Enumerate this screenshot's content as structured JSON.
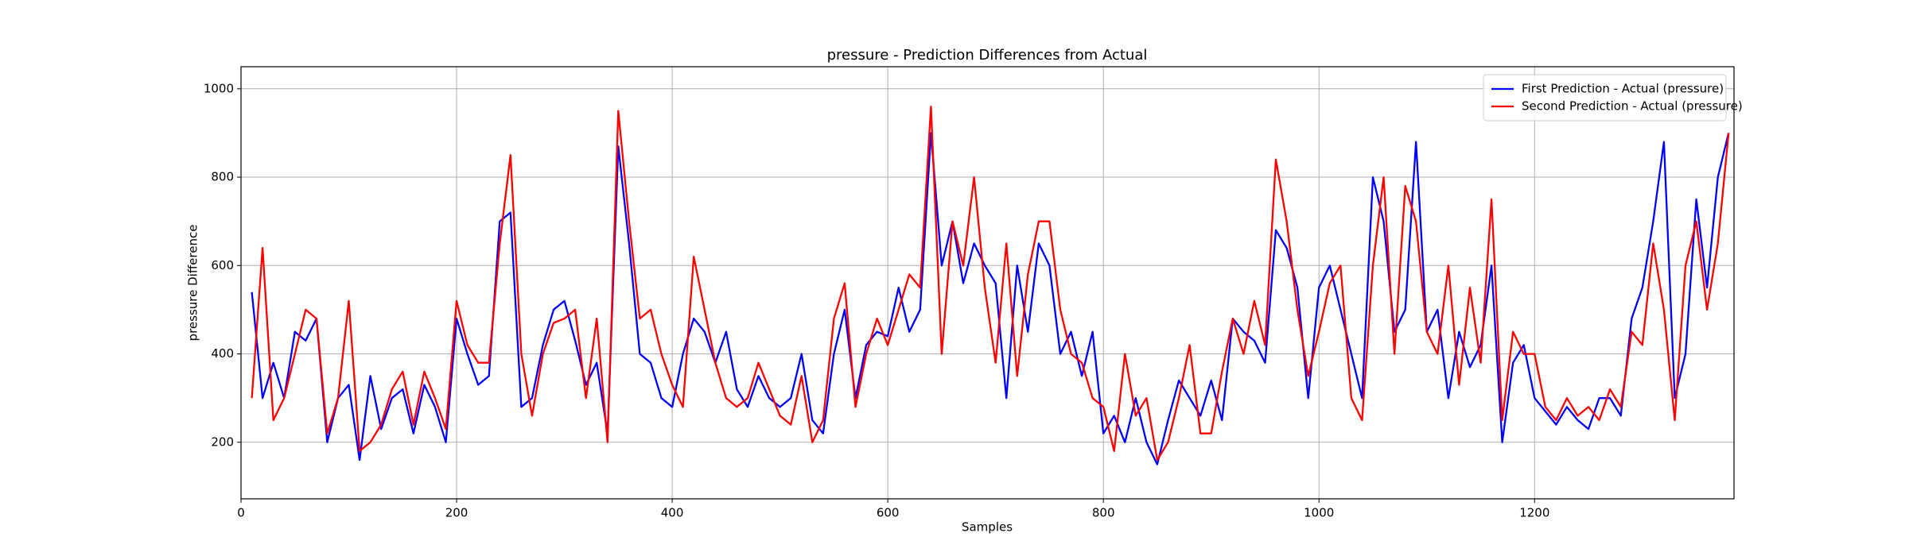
{
  "chart_data": {
    "type": "line",
    "title": "pressure - Prediction Differences from Actual",
    "xlabel": "Samples",
    "ylabel": "pressure Difference",
    "x": [
      10,
      20,
      30,
      40,
      50,
      60,
      70,
      80,
      90,
      100,
      110,
      120,
      130,
      140,
      150,
      160,
      170,
      180,
      190,
      200,
      210,
      220,
      230,
      240,
      250,
      260,
      270,
      280,
      290,
      300,
      310,
      320,
      330,
      340,
      350,
      360,
      370,
      380,
      390,
      400,
      410,
      420,
      430,
      440,
      450,
      460,
      470,
      480,
      490,
      500,
      510,
      520,
      530,
      540,
      550,
      560,
      570,
      580,
      590,
      600,
      610,
      620,
      630,
      640,
      650,
      660,
      670,
      680,
      690,
      700,
      710,
      720,
      730,
      740,
      750,
      760,
      770,
      780,
      790,
      800,
      810,
      820,
      830,
      840,
      850,
      860,
      870,
      880,
      890,
      900,
      910,
      920,
      930,
      940,
      950,
      960,
      970,
      980,
      990,
      1000,
      1010,
      1020,
      1030,
      1040,
      1050,
      1060,
      1070,
      1080,
      1090,
      1100,
      1110,
      1120,
      1130,
      1140,
      1150,
      1160,
      1170,
      1180,
      1190,
      1200,
      1210,
      1220,
      1230,
      1240,
      1250,
      1260,
      1270,
      1280,
      1290,
      1300,
      1310,
      1320,
      1330,
      1340,
      1350,
      1360,
      1370,
      1380
    ],
    "series": [
      {
        "name": "First Prediction - Actual (pressure)",
        "color": "#0000ff",
        "values": [
          540,
          300,
          380,
          300,
          450,
          430,
          480,
          200,
          300,
          330,
          160,
          350,
          230,
          300,
          320,
          220,
          330,
          280,
          200,
          480,
          400,
          330,
          350,
          700,
          720,
          280,
          300,
          420,
          500,
          520,
          430,
          330,
          380,
          220,
          870,
          650,
          400,
          380,
          300,
          280,
          400,
          480,
          450,
          380,
          450,
          320,
          280,
          350,
          300,
          280,
          300,
          400,
          250,
          220,
          400,
          500,
          300,
          420,
          450,
          440,
          550,
          450,
          500,
          900,
          600,
          700,
          560,
          650,
          600,
          560,
          300,
          600,
          450,
          650,
          600,
          400,
          450,
          350,
          450,
          220,
          260,
          200,
          300,
          200,
          150,
          250,
          340,
          300,
          260,
          340,
          250,
          480,
          450,
          430,
          380,
          680,
          640,
          550,
          300,
          550,
          600,
          500,
          400,
          300,
          800,
          700,
          450,
          500,
          880,
          450,
          500,
          300,
          450,
          370,
          420,
          600,
          200,
          380,
          420,
          300,
          270,
          240,
          280,
          250,
          230,
          300,
          300,
          260,
          480,
          550,
          700,
          880,
          300,
          400,
          750,
          550,
          800,
          900
        ]
      },
      {
        "name": "Second Prediction - Actual (pressure)",
        "color": "#ff0000",
        "values": [
          300,
          640,
          250,
          300,
          400,
          500,
          480,
          220,
          300,
          520,
          180,
          200,
          240,
          320,
          360,
          240,
          360,
          300,
          230,
          520,
          420,
          380,
          380,
          650,
          850,
          400,
          260,
          400,
          470,
          480,
          500,
          300,
          480,
          200,
          950,
          700,
          480,
          500,
          400,
          330,
          280,
          620,
          500,
          380,
          300,
          280,
          300,
          380,
          320,
          260,
          240,
          350,
          200,
          250,
          480,
          560,
          280,
          400,
          480,
          420,
          500,
          580,
          550,
          960,
          400,
          700,
          600,
          800,
          550,
          380,
          650,
          350,
          580,
          700,
          700,
          500,
          400,
          380,
          300,
          280,
          180,
          400,
          260,
          300,
          160,
          200,
          300,
          420,
          220,
          220,
          360,
          480,
          400,
          520,
          420,
          840,
          700,
          500,
          350,
          450,
          560,
          600,
          300,
          250,
          600,
          800,
          400,
          780,
          700,
          450,
          400,
          600,
          330,
          550,
          380,
          750,
          250,
          450,
          400,
          400,
          280,
          250,
          300,
          260,
          280,
          250,
          320,
          280,
          450,
          420,
          650,
          500,
          250,
          600,
          700,
          500,
          650,
          900
        ]
      }
    ],
    "xlim": [
      0,
      1385
    ],
    "ylim": [
      72,
      1050
    ],
    "xticks": [
      0,
      200,
      400,
      600,
      800,
      1000,
      1200
    ],
    "yticks": [
      200,
      400,
      600,
      800,
      1000
    ],
    "grid": true,
    "legend": "upper right"
  }
}
